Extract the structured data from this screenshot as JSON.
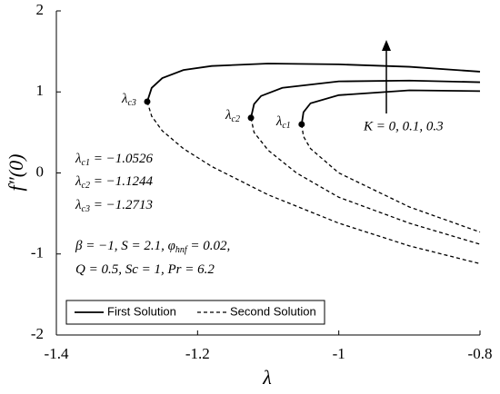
{
  "chart_data": {
    "type": "line",
    "x_label": "λ",
    "y_label": "f″(0)",
    "xlim": [
      -1.4,
      -0.8
    ],
    "xticks": [
      -1.4,
      -1.2,
      -1,
      -0.8
    ],
    "ylim": [
      -2,
      2
    ],
    "yticks": [
      -2,
      -1,
      0,
      1,
      2
    ],
    "grid": false,
    "legend": "bottom-left",
    "series": [
      {
        "name": "First Solution",
        "color": "#000000",
        "dash": false,
        "lines": [
          {
            "x": [
              -1.0526,
              -1.05,
              -1.04,
              -1.0,
              -0.9,
              -0.8
            ],
            "values": [
              0.6,
              0.75,
              0.86,
              0.96,
              1.02,
              1.01
            ]
          },
          {
            "x": [
              -1.1244,
              -1.12,
              -1.11,
              -1.08,
              -1.0,
              -0.9,
              -0.8
            ],
            "values": [
              0.68,
              0.85,
              0.95,
              1.05,
              1.13,
              1.14,
              1.12
            ]
          },
          {
            "x": [
              -1.2713,
              -1.265,
              -1.25,
              -1.22,
              -1.18,
              -1.1,
              -1.0,
              -0.9,
              -0.8
            ],
            "values": [
              0.88,
              1.05,
              1.17,
              1.27,
              1.32,
              1.35,
              1.34,
              1.31,
              1.25
            ]
          }
        ]
      },
      {
        "name": "Second Solution",
        "color": "#000000",
        "dash": true,
        "lines": [
          {
            "x": [
              -1.0526,
              -1.05,
              -1.04,
              -1.0,
              -0.9,
              -0.8
            ],
            "values": [
              0.6,
              0.45,
              0.3,
              0.0,
              -0.42,
              -0.73
            ]
          },
          {
            "x": [
              -1.1244,
              -1.12,
              -1.1,
              -1.06,
              -1.0,
              -0.9,
              -0.8
            ],
            "values": [
              0.68,
              0.5,
              0.28,
              0.0,
              -0.3,
              -0.62,
              -0.88
            ]
          },
          {
            "x": [
              -1.2713,
              -1.265,
              -1.25,
              -1.22,
              -1.18,
              -1.1,
              -1.0,
              -0.9,
              -0.8
            ],
            "values": [
              0.88,
              0.7,
              0.52,
              0.3,
              0.08,
              -0.27,
              -0.62,
              -0.9,
              -1.12
            ]
          }
        ]
      }
    ],
    "critical_points": [
      {
        "symbol": "λ",
        "sub": "c1",
        "x": -1.0526,
        "value": 0.6
      },
      {
        "symbol": "λ",
        "sub": "c2",
        "x": -1.1244,
        "value": 0.68
      },
      {
        "symbol": "λ",
        "sub": "c3",
        "x": -1.2713,
        "value": 0.88
      }
    ],
    "arrow_label": "K = 0, 0.1, 0.3",
    "equations": [
      [
        {
          "text": "λ"
        },
        {
          "sub": "c1"
        },
        {
          "text": " = −1.0526"
        }
      ],
      [
        {
          "text": "λ"
        },
        {
          "sub": "c2"
        },
        {
          "text": " = −1.1244"
        }
      ],
      [
        {
          "text": "λ"
        },
        {
          "sub": "c3"
        },
        {
          "text": " = −1.2713"
        }
      ],
      [
        {
          "text": "β = −1, S = 2.1, φ"
        },
        {
          "sub": "hnf"
        },
        {
          "text": " = 0.02,"
        }
      ],
      [
        {
          "text": "Q = 0.5, Sc = 1, Pr = 6.2"
        }
      ]
    ]
  }
}
